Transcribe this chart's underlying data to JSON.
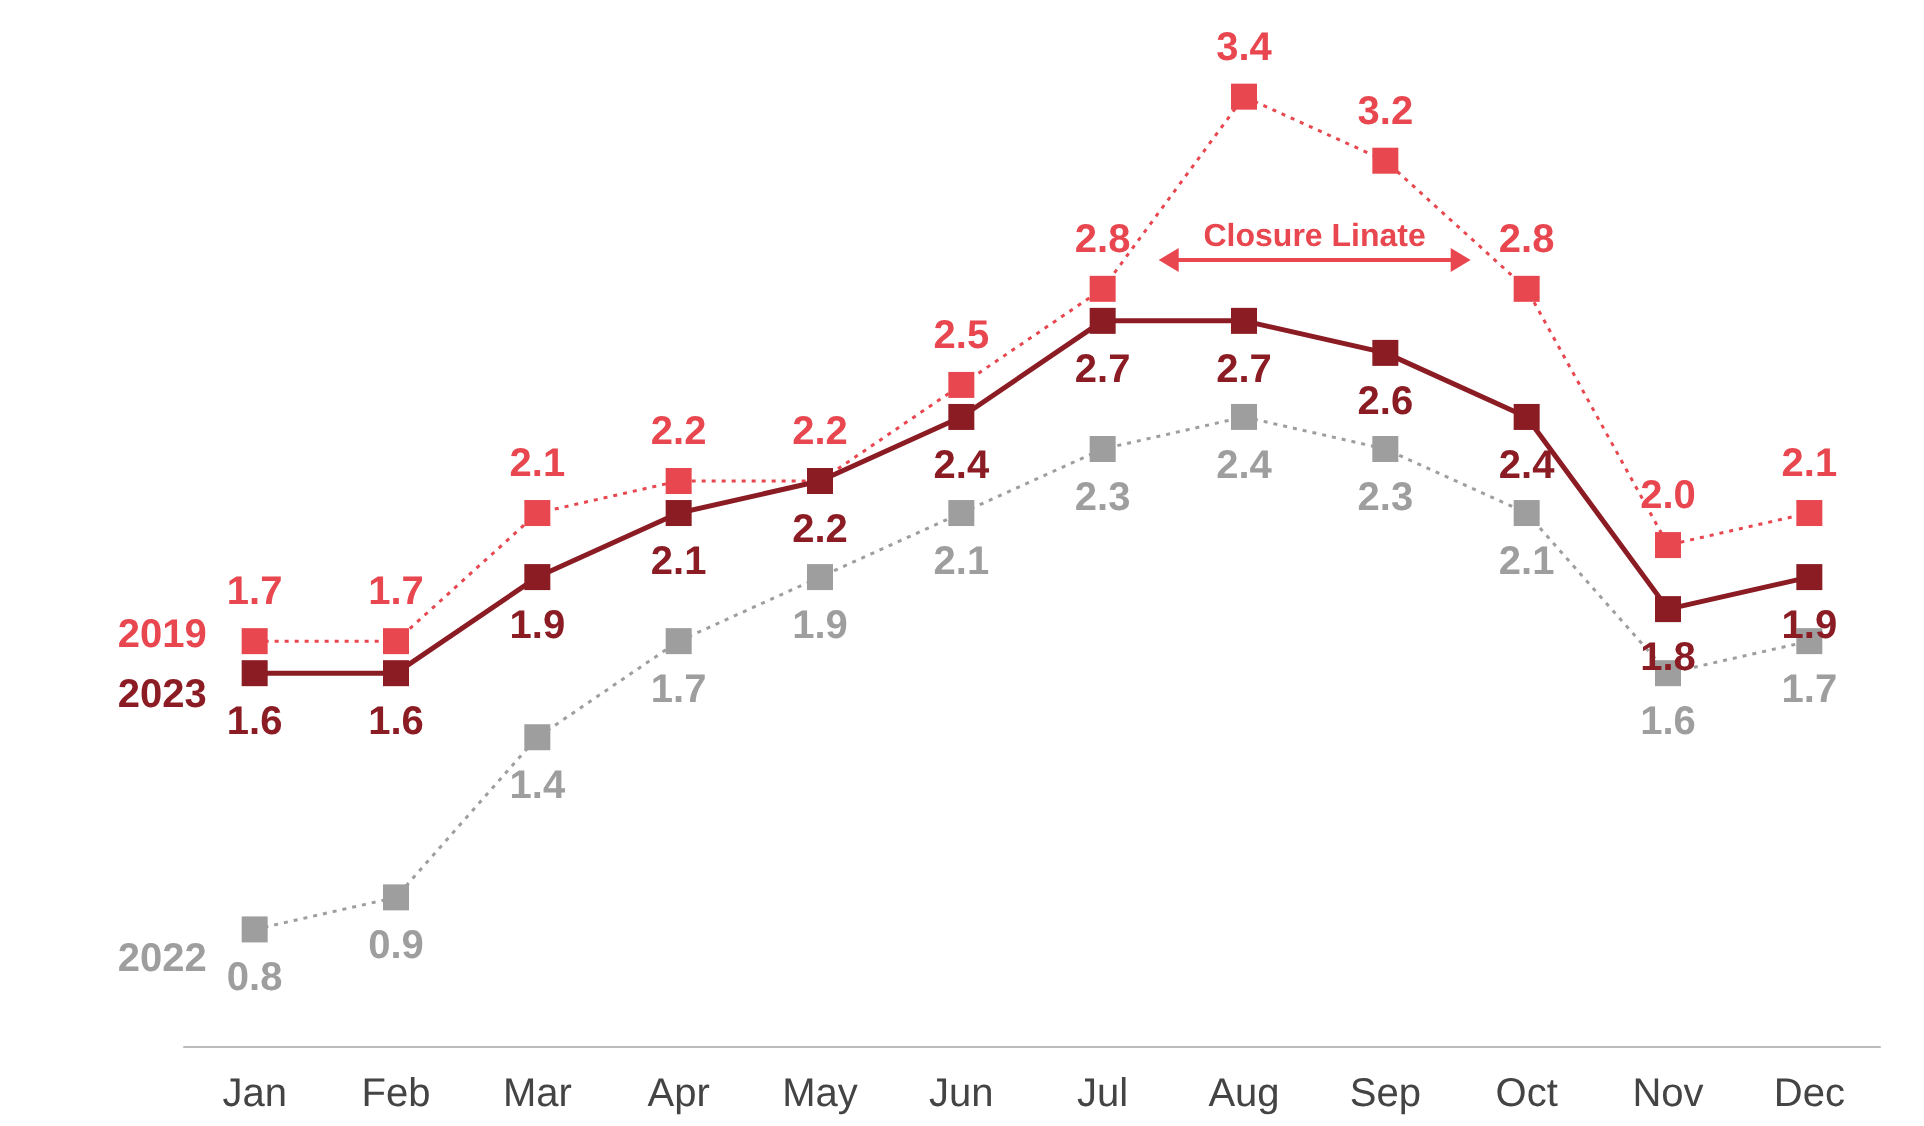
{
  "chart_data": {
    "type": "line",
    "categories": [
      "Jan",
      "Feb",
      "Mar",
      "Apr",
      "May",
      "Jun",
      "Jul",
      "Aug",
      "Sep",
      "Oct",
      "Nov",
      "Dec"
    ],
    "series": [
      {
        "name": "2019",
        "color": "#e8474f",
        "line_style": "dotted",
        "values": [
          1.7,
          1.7,
          2.1,
          2.2,
          2.2,
          2.5,
          2.8,
          3.4,
          3.2,
          2.8,
          2.0,
          2.1
        ],
        "value_labels": [
          "1.7",
          "1.7",
          "2.1",
          "2.2",
          "2.2",
          "2.5",
          "2.8",
          "3.4",
          "3.2",
          "2.8",
          "2.0",
          "2.1"
        ]
      },
      {
        "name": "2023",
        "color": "#8b1c24",
        "line_style": "solid",
        "values": [
          1.6,
          1.6,
          1.9,
          2.1,
          2.2,
          2.4,
          2.7,
          2.7,
          2.6,
          2.4,
          1.8,
          1.9
        ],
        "value_labels": [
          "1.6",
          "1.6",
          "1.9",
          "2.1",
          "2.2",
          "2.4",
          "2.7",
          "2.7",
          "2.6",
          "2.4",
          "1.8",
          "1.9"
        ]
      },
      {
        "name": "2022",
        "color": "#9e9e9e",
        "line_style": "dotted",
        "values": [
          0.8,
          0.9,
          1.4,
          1.7,
          1.9,
          2.1,
          2.3,
          2.4,
          2.3,
          2.1,
          1.6,
          1.7
        ],
        "value_labels": [
          "0.8",
          "0.9",
          "1.4",
          "1.7",
          "1.9",
          "2.1",
          "2.3",
          "2.4",
          "2.3",
          "2.1",
          "1.6",
          "1.7"
        ]
      }
    ],
    "annotations": [
      "Closure Linate"
    ],
    "marker": "square",
    "grid": false,
    "legend": false
  }
}
